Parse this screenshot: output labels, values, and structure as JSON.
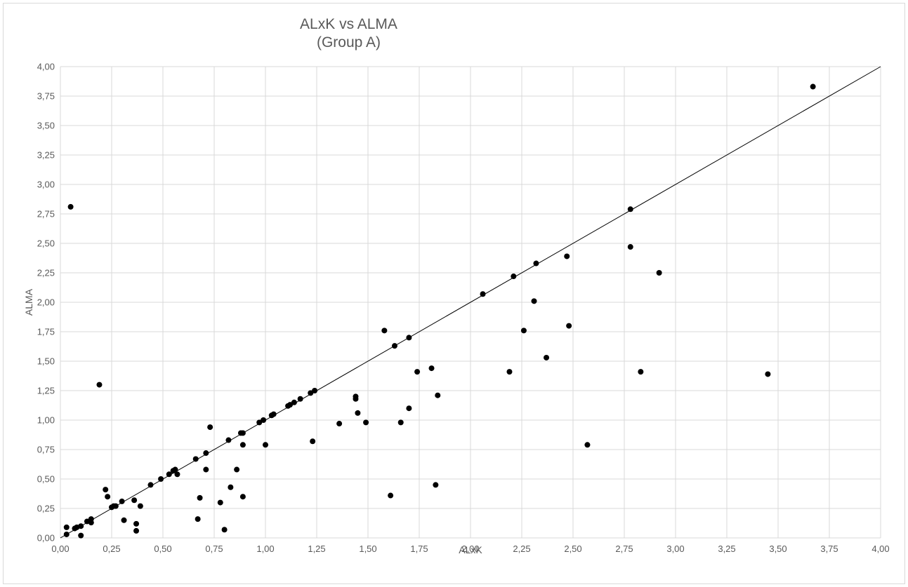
{
  "chart_data": {
    "type": "scatter",
    "title": "ALxK vs ALMA",
    "subtitle": "(Group A)",
    "xlabel": "ALxK",
    "ylabel": "ALMA",
    "xlim": [
      0,
      4
    ],
    "ylim": [
      0,
      4
    ],
    "xticks": [
      "0,00",
      "0,25",
      "0,50",
      "0,75",
      "1,00",
      "1,25",
      "1,50",
      "1,75",
      "2,00",
      "2,25",
      "2,50",
      "2,75",
      "3,00",
      "3,25",
      "3,50",
      "3,75",
      "4,00"
    ],
    "yticks": [
      "0,00",
      "0,25",
      "0,50",
      "0,75",
      "1,00",
      "1,25",
      "1,50",
      "1,75",
      "2,00",
      "2,25",
      "2,50",
      "2,75",
      "3,00",
      "3,25",
      "3,50",
      "3,75",
      "4,00"
    ],
    "grid": true,
    "reference_line": {
      "x": [
        0,
        4
      ],
      "y": [
        0,
        4
      ],
      "color": "#000000"
    },
    "marker_color": "#000000",
    "points": [
      [
        0.03,
        0.03
      ],
      [
        0.03,
        0.09
      ],
      [
        0.05,
        2.81
      ],
      [
        0.07,
        0.08
      ],
      [
        0.08,
        0.09
      ],
      [
        0.1,
        0.1
      ],
      [
        0.1,
        0.02
      ],
      [
        0.13,
        0.14
      ],
      [
        0.15,
        0.13
      ],
      [
        0.15,
        0.16
      ],
      [
        0.19,
        1.3
      ],
      [
        0.22,
        0.41
      ],
      [
        0.23,
        0.35
      ],
      [
        0.25,
        0.26
      ],
      [
        0.26,
        0.27
      ],
      [
        0.27,
        0.27
      ],
      [
        0.3,
        0.31
      ],
      [
        0.31,
        0.15
      ],
      [
        0.36,
        0.32
      ],
      [
        0.37,
        0.12
      ],
      [
        0.37,
        0.06
      ],
      [
        0.39,
        0.27
      ],
      [
        0.44,
        0.45
      ],
      [
        0.49,
        0.5
      ],
      [
        0.53,
        0.54
      ],
      [
        0.55,
        0.57
      ],
      [
        0.56,
        0.58
      ],
      [
        0.57,
        0.54
      ],
      [
        0.66,
        0.67
      ],
      [
        0.67,
        0.16
      ],
      [
        0.68,
        0.34
      ],
      [
        0.71,
        0.72
      ],
      [
        0.71,
        0.58
      ],
      [
        0.73,
        0.94
      ],
      [
        0.78,
        0.3
      ],
      [
        0.8,
        0.07
      ],
      [
        0.82,
        0.83
      ],
      [
        0.83,
        0.43
      ],
      [
        0.86,
        0.58
      ],
      [
        0.88,
        0.89
      ],
      [
        0.89,
        0.79
      ],
      [
        0.89,
        0.35
      ],
      [
        0.89,
        0.89
      ],
      [
        0.97,
        0.98
      ],
      [
        0.99,
        1.0
      ],
      [
        1.0,
        0.79
      ],
      [
        1.03,
        1.04
      ],
      [
        1.04,
        1.05
      ],
      [
        1.11,
        1.12
      ],
      [
        1.12,
        1.13
      ],
      [
        1.14,
        1.15
      ],
      [
        1.17,
        1.18
      ],
      [
        1.22,
        1.23
      ],
      [
        1.23,
        0.82
      ],
      [
        1.24,
        1.25
      ],
      [
        1.36,
        0.97
      ],
      [
        1.44,
        1.18
      ],
      [
        1.44,
        1.2
      ],
      [
        1.45,
        1.06
      ],
      [
        1.49,
        0.98
      ],
      [
        1.58,
        1.76
      ],
      [
        1.61,
        0.36
      ],
      [
        1.63,
        1.63
      ],
      [
        1.66,
        0.98
      ],
      [
        1.7,
        1.7
      ],
      [
        1.7,
        1.1
      ],
      [
        1.74,
        1.41
      ],
      [
        1.81,
        1.44
      ],
      [
        1.83,
        0.45
      ],
      [
        1.84,
        1.21
      ],
      [
        2.06,
        2.07
      ],
      [
        2.19,
        1.41
      ],
      [
        2.21,
        2.22
      ],
      [
        2.26,
        1.76
      ],
      [
        2.31,
        2.01
      ],
      [
        2.32,
        2.33
      ],
      [
        2.37,
        1.53
      ],
      [
        2.47,
        2.39
      ],
      [
        2.48,
        1.8
      ],
      [
        2.57,
        0.79
      ],
      [
        2.78,
        2.79
      ],
      [
        2.78,
        2.47
      ],
      [
        2.83,
        1.41
      ],
      [
        2.92,
        2.25
      ],
      [
        3.45,
        1.39
      ],
      [
        3.67,
        3.83
      ]
    ]
  }
}
